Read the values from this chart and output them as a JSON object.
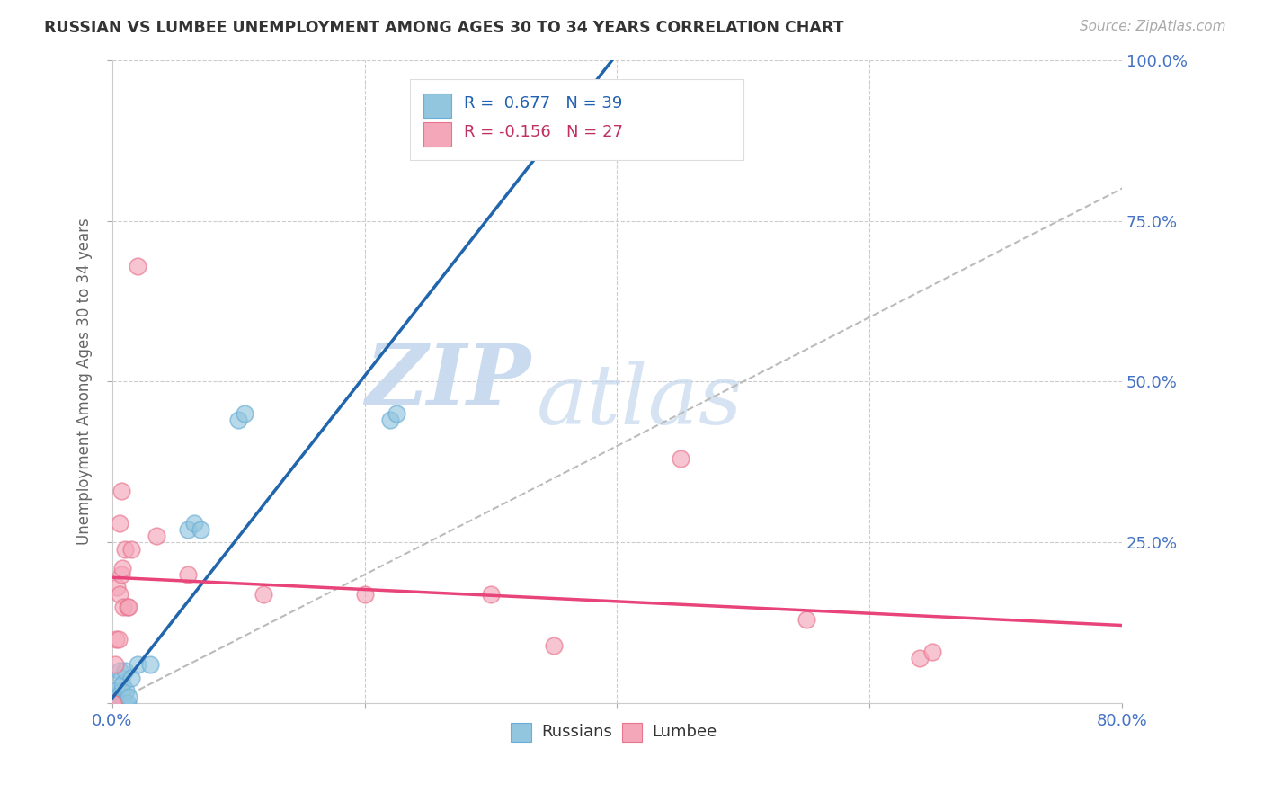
{
  "title": "RUSSIAN VS LUMBEE UNEMPLOYMENT AMONG AGES 30 TO 34 YEARS CORRELATION CHART",
  "source": "Source: ZipAtlas.com",
  "ylabel": "Unemployment Among Ages 30 to 34 years",
  "xlim": [
    0.0,
    0.8
  ],
  "ylim": [
    0.0,
    1.0
  ],
  "russian_color": "#92c5de",
  "russian_edge": "#6baed6",
  "lumbee_color": "#f4a7b9",
  "lumbee_edge": "#e8758e",
  "russian_line_color": "#2166ac",
  "lumbee_line_color": "#e8447a",
  "diag_color": "#bbbbbb",
  "russian_R": 0.677,
  "russian_N": 39,
  "lumbee_R": -0.156,
  "lumbee_N": 27,
  "legend_russian_label": "Russians",
  "legend_lumbee_label": "Lumbee",
  "watermark_zip": "ZIP",
  "watermark_atlas": "atlas",
  "tick_color": "#4472c4",
  "russian_x": [
    0.0,
    0.001,
    0.001,
    0.002,
    0.002,
    0.002,
    0.003,
    0.003,
    0.003,
    0.004,
    0.004,
    0.004,
    0.005,
    0.005,
    0.005,
    0.006,
    0.006,
    0.007,
    0.007,
    0.007,
    0.007,
    0.008,
    0.008,
    0.009,
    0.01,
    0.01,
    0.011,
    0.012,
    0.013,
    0.015,
    0.02,
    0.03,
    0.06,
    0.065,
    0.07,
    0.1,
    0.105,
    0.22,
    0.225
  ],
  "russian_y": [
    0.0,
    0.0,
    0.0,
    0.0,
    0.0,
    0.01,
    0.0,
    0.0,
    0.02,
    0.0,
    0.0,
    0.0,
    0.0,
    0.0,
    0.0,
    0.0,
    0.05,
    0.0,
    0.0,
    0.02,
    0.04,
    0.0,
    0.03,
    0.0,
    0.0,
    0.05,
    0.02,
    0.0,
    0.01,
    0.04,
    0.06,
    0.06,
    0.27,
    0.28,
    0.27,
    0.44,
    0.45,
    0.44,
    0.45
  ],
  "lumbee_x": [
    0.0,
    0.001,
    0.002,
    0.003,
    0.004,
    0.005,
    0.006,
    0.006,
    0.007,
    0.007,
    0.008,
    0.009,
    0.01,
    0.012,
    0.013,
    0.015,
    0.02,
    0.035,
    0.06,
    0.12,
    0.2,
    0.3,
    0.35,
    0.45,
    0.55,
    0.64,
    0.65
  ],
  "lumbee_y": [
    0.0,
    0.0,
    0.06,
    0.1,
    0.18,
    0.1,
    0.17,
    0.28,
    0.2,
    0.33,
    0.21,
    0.15,
    0.24,
    0.15,
    0.15,
    0.24,
    0.68,
    0.26,
    0.2,
    0.17,
    0.17,
    0.17,
    0.09,
    0.38,
    0.13,
    0.07,
    0.08
  ]
}
